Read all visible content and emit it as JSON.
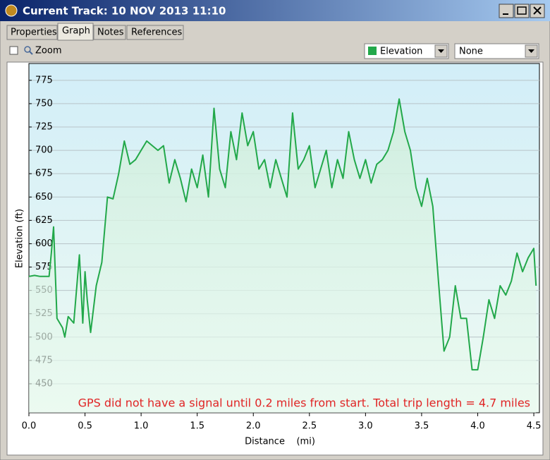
{
  "window": {
    "title": "Current Track: 10 NOV 2013 11:10"
  },
  "tabs": [
    "Properties",
    "Graph",
    "Notes",
    "References"
  ],
  "toolbar": {
    "zoom": "Zoom",
    "dropdowns": [
      "Elevation",
      "None"
    ]
  },
  "chart_data": {
    "type": "line",
    "xlabel": "Distance    (mi)",
    "ylabel": "Elevation (ft)",
    "annotation": "GPS did not have a signal until 0.2 miles from start. Total trip length = 4.7 miles",
    "color": "#22a84a",
    "grid": true,
    "xlim": [
      0,
      4.55
    ],
    "ylim": [
      419,
      793
    ],
    "xticks": [
      {
        "value": 0,
        "label": "0.0"
      },
      0.5,
      {
        "value": 1,
        "label": "1.0"
      },
      1.5,
      {
        "value": 2,
        "label": "2.0"
      },
      2.5,
      {
        "value": 3,
        "label": "3.0"
      },
      3.5,
      {
        "value": 4,
        "label": "4.0"
      },
      4.5
    ],
    "yticks": [
      450,
      475,
      500,
      525,
      550,
      575,
      600,
      625,
      650,
      675,
      700,
      725,
      750,
      775
    ],
    "x": [
      0,
      0.05,
      0.1,
      0.15,
      0.18,
      0.2,
      0.22,
      0.25,
      0.3,
      0.32,
      0.35,
      0.4,
      0.45,
      0.48,
      0.5,
      0.52,
      0.55,
      0.6,
      0.65,
      0.7,
      0.75,
      0.8,
      0.85,
      0.9,
      0.95,
      1.0,
      1.05,
      1.1,
      1.15,
      1.2,
      1.25,
      1.3,
      1.35,
      1.4,
      1.45,
      1.5,
      1.55,
      1.6,
      1.65,
      1.7,
      1.75,
      1.8,
      1.85,
      1.9,
      1.95,
      2.0,
      2.05,
      2.1,
      2.15,
      2.2,
      2.25,
      2.3,
      2.35,
      2.4,
      2.45,
      2.5,
      2.55,
      2.6,
      2.65,
      2.7,
      2.75,
      2.8,
      2.85,
      2.9,
      2.95,
      3.0,
      3.05,
      3.1,
      3.15,
      3.2,
      3.25,
      3.3,
      3.35,
      3.4,
      3.45,
      3.5,
      3.55,
      3.6,
      3.65,
      3.7,
      3.75,
      3.8,
      3.85,
      3.9,
      3.95,
      4.0,
      4.05,
      4.1,
      4.15,
      4.2,
      4.25,
      4.3,
      4.35,
      4.4,
      4.45,
      4.5,
      4.52
    ],
    "values": [
      565,
      566,
      565,
      565,
      565,
      590,
      618,
      520,
      510,
      500,
      522,
      515,
      588,
      515,
      570,
      540,
      505,
      555,
      580,
      650,
      648,
      675,
      710,
      685,
      690,
      700,
      710,
      705,
      700,
      705,
      665,
      690,
      670,
      645,
      680,
      660,
      695,
      650,
      745,
      680,
      660,
      720,
      690,
      740,
      705,
      720,
      680,
      690,
      660,
      690,
      670,
      650,
      740,
      680,
      690,
      705,
      660,
      680,
      700,
      660,
      690,
      670,
      720,
      690,
      670,
      690,
      665,
      685,
      690,
      700,
      720,
      755,
      720,
      700,
      660,
      640,
      670,
      640,
      560,
      485,
      500,
      555,
      520,
      520,
      465,
      465,
      500,
      540,
      520,
      555,
      545,
      560,
      590,
      570,
      585,
      595,
      555
    ]
  }
}
